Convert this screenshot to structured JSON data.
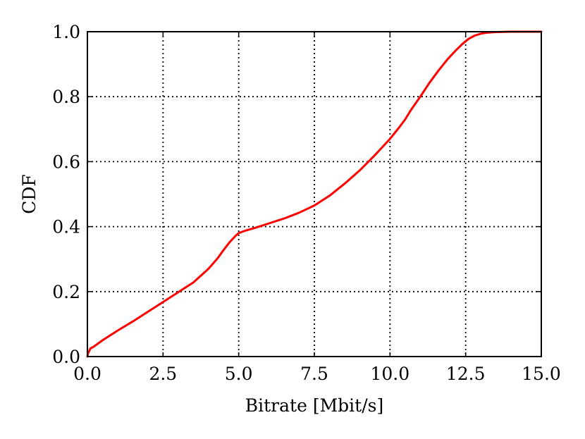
{
  "chart_data": {
    "type": "line",
    "title": "",
    "xlabel": "Bitrate [Mbit/s]",
    "ylabel": "CDF",
    "xlim": [
      0.0,
      15.0
    ],
    "ylim": [
      0.0,
      1.0
    ],
    "xticks": [
      "0.0",
      "2.5",
      "5.0",
      "7.5",
      "10.0",
      "12.5",
      "15.0"
    ],
    "yticks": [
      "0.0",
      "0.2",
      "0.4",
      "0.6",
      "0.8",
      "1.0"
    ],
    "grid": true,
    "legend": "none",
    "series": [
      {
        "color": "#ff0000",
        "x": [
          0.0,
          0.02,
          0.05,
          0.1,
          0.2,
          0.5,
          1.0,
          1.5,
          2.0,
          2.5,
          3.0,
          3.5,
          4.0,
          4.3,
          4.5,
          4.7,
          4.9,
          5.0,
          5.2,
          5.5,
          6.0,
          6.5,
          7.0,
          7.5,
          8.0,
          8.5,
          9.0,
          9.5,
          10.0,
          10.3,
          10.5,
          10.7,
          11.0,
          11.3,
          11.6,
          11.9,
          12.2,
          12.4,
          12.6,
          12.8,
          13.0,
          13.2,
          13.5,
          14.0,
          14.5,
          15.0
        ],
        "y": [
          0.0,
          0.01,
          0.015,
          0.025,
          0.03,
          0.05,
          0.08,
          0.108,
          0.138,
          0.168,
          0.198,
          0.228,
          0.27,
          0.302,
          0.328,
          0.352,
          0.372,
          0.38,
          0.387,
          0.395,
          0.41,
          0.425,
          0.443,
          0.465,
          0.495,
          0.532,
          0.573,
          0.62,
          0.67,
          0.705,
          0.73,
          0.76,
          0.8,
          0.842,
          0.88,
          0.915,
          0.945,
          0.963,
          0.978,
          0.988,
          0.994,
          0.997,
          0.999,
          1.0,
          1.0,
          1.0
        ]
      }
    ]
  }
}
